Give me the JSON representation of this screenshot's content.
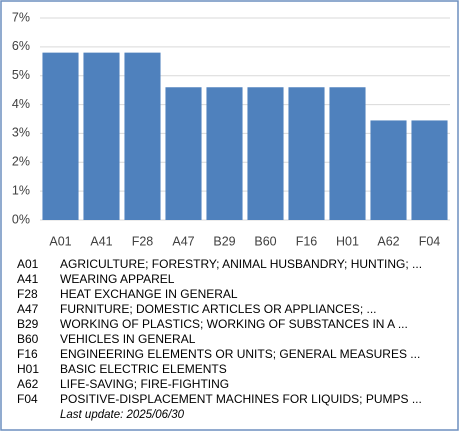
{
  "chart_data": {
    "type": "bar",
    "categories": [
      "A01",
      "A41",
      "F28",
      "A47",
      "B29",
      "B60",
      "F16",
      "H01",
      "A62",
      "F04"
    ],
    "values": [
      5.8,
      5.8,
      5.8,
      4.6,
      4.6,
      4.6,
      4.6,
      4.6,
      3.45,
      3.45
    ],
    "color": "#4f81bd",
    "ylim": [
      0,
      7
    ],
    "yticks": [
      {
        "value": 0,
        "label": "0%"
      },
      {
        "value": 1,
        "label": "1%"
      },
      {
        "value": 2,
        "label": "2%"
      },
      {
        "value": 3,
        "label": "3%"
      },
      {
        "value": 4,
        "label": "4%"
      },
      {
        "value": 5,
        "label": "5%"
      },
      {
        "value": 6,
        "label": "6%"
      },
      {
        "value": 7,
        "label": "7%"
      }
    ],
    "grid": true,
    "descriptions": [
      "AGRICULTURE; FORESTRY; ANIMAL HUSBANDRY; HUNTING; ...",
      "WEARING APPAREL",
      "HEAT EXCHANGE IN GENERAL",
      "FURNITURE; DOMESTIC ARTICLES OR APPLIANCES; ...",
      "WORKING OF PLASTICS; WORKING OF SUBSTANCES IN A ...",
      "VEHICLES IN GENERAL",
      "ENGINEERING ELEMENTS OR UNITS; GENERAL MEASURES ...",
      "BASIC ELECTRIC ELEMENTS",
      "LIFE-SAVING; FIRE-FIGHTING",
      "POSITIVE-DISPLACEMENT MACHINES FOR LIQUIDS; PUMPS ..."
    ],
    "note": "Last update:  2025/06/30"
  }
}
